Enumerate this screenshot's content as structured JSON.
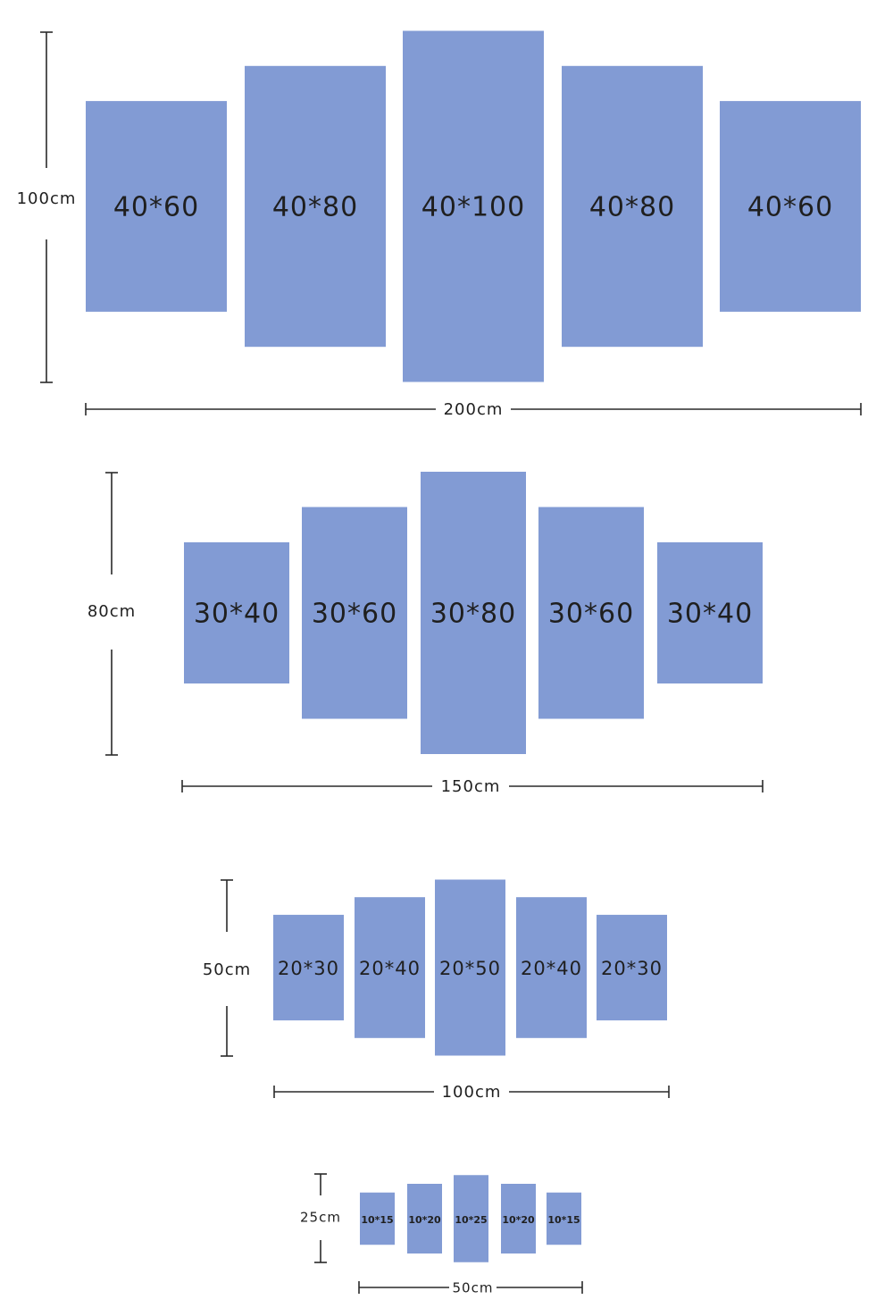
{
  "sets": [
    {
      "id": "large",
      "width_label": "200cm",
      "height_label": "100cm",
      "panels": [
        {
          "label": "40*60",
          "w": 40,
          "h": 60
        },
        {
          "label": "40*80",
          "w": 40,
          "h": 80
        },
        {
          "label": "40*100",
          "w": 40,
          "h": 100
        },
        {
          "label": "40*80",
          "w": 40,
          "h": 80
        },
        {
          "label": "40*60",
          "w": 40,
          "h": 60
        }
      ]
    },
    {
      "id": "medium",
      "width_label": "150cm",
      "height_label": "80cm",
      "panels": [
        {
          "label": "30*40",
          "w": 30,
          "h": 40
        },
        {
          "label": "30*60",
          "w": 30,
          "h": 60
        },
        {
          "label": "30*80",
          "w": 30,
          "h": 80
        },
        {
          "label": "30*60",
          "w": 30,
          "h": 60
        },
        {
          "label": "30*40",
          "w": 30,
          "h": 40
        }
      ]
    },
    {
      "id": "small",
      "width_label": "100cm",
      "height_label": "50cm",
      "panels": [
        {
          "label": "20*30",
          "w": 20,
          "h": 30
        },
        {
          "label": "20*40",
          "w": 20,
          "h": 40
        },
        {
          "label": "20*50",
          "w": 20,
          "h": 50
        },
        {
          "label": "20*40",
          "w": 20,
          "h": 40
        },
        {
          "label": "20*30",
          "w": 20,
          "h": 30
        }
      ]
    },
    {
      "id": "mini",
      "width_label": "50cm",
      "height_label": "25cm",
      "panels": [
        {
          "label": "10*15",
          "w": 10,
          "h": 15
        },
        {
          "label": "10*20",
          "w": 10,
          "h": 20
        },
        {
          "label": "10*25",
          "w": 10,
          "h": 25
        },
        {
          "label": "10*20",
          "w": 10,
          "h": 20
        },
        {
          "label": "10*15",
          "w": 10,
          "h": 15
        }
      ]
    }
  ],
  "colors": {
    "panel": "#829bd4",
    "line": "#2a2a2a",
    "text": "#1f1f1f"
  }
}
